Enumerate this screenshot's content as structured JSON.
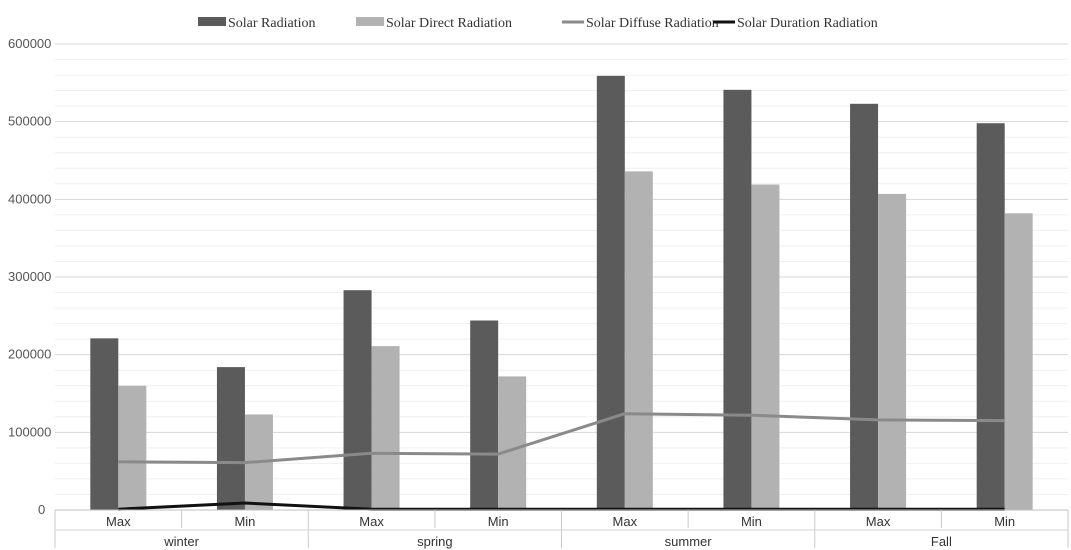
{
  "chart_data": {
    "type": "bar",
    "title": "",
    "xlabel": "",
    "ylabel": "",
    "ylim": [
      0,
      600000
    ],
    "yticks": [
      0,
      100000,
      200000,
      300000,
      400000,
      500000,
      600000
    ],
    "grid": true,
    "legend_position": "top",
    "groups": [
      {
        "label": "winter",
        "span": 2
      },
      {
        "label": "spring",
        "span": 2
      },
      {
        "label": "summer",
        "span": 2
      },
      {
        "label": "Fall",
        "span": 2
      }
    ],
    "categories": [
      "Max",
      "Min",
      "Max",
      "Min",
      "Max",
      "Min",
      "Max",
      "Min"
    ],
    "series": [
      {
        "name": "Solar Radiation",
        "kind": "bar",
        "color": "#5b5b5b",
        "values": [
          221000,
          184000,
          283000,
          244000,
          559000,
          541000,
          523000,
          498000
        ]
      },
      {
        "name": "Solar Direct Radiation",
        "kind": "bar",
        "color": "#b2b2b2",
        "values": [
          160000,
          123000,
          211000,
          172000,
          436000,
          419000,
          407000,
          382000
        ]
      },
      {
        "name": "Solar Diffuse Radiation",
        "kind": "line",
        "color": "#8a8a8a",
        "values": [
          62000,
          61000,
          73000,
          72000,
          124000,
          122000,
          116000,
          115000
        ]
      },
      {
        "name": "Solar Duration Radiation",
        "kind": "line",
        "color": "#111111",
        "values": [
          1000,
          9000,
          1000,
          1000,
          1000,
          1000,
          1000,
          1000
        ]
      }
    ]
  }
}
